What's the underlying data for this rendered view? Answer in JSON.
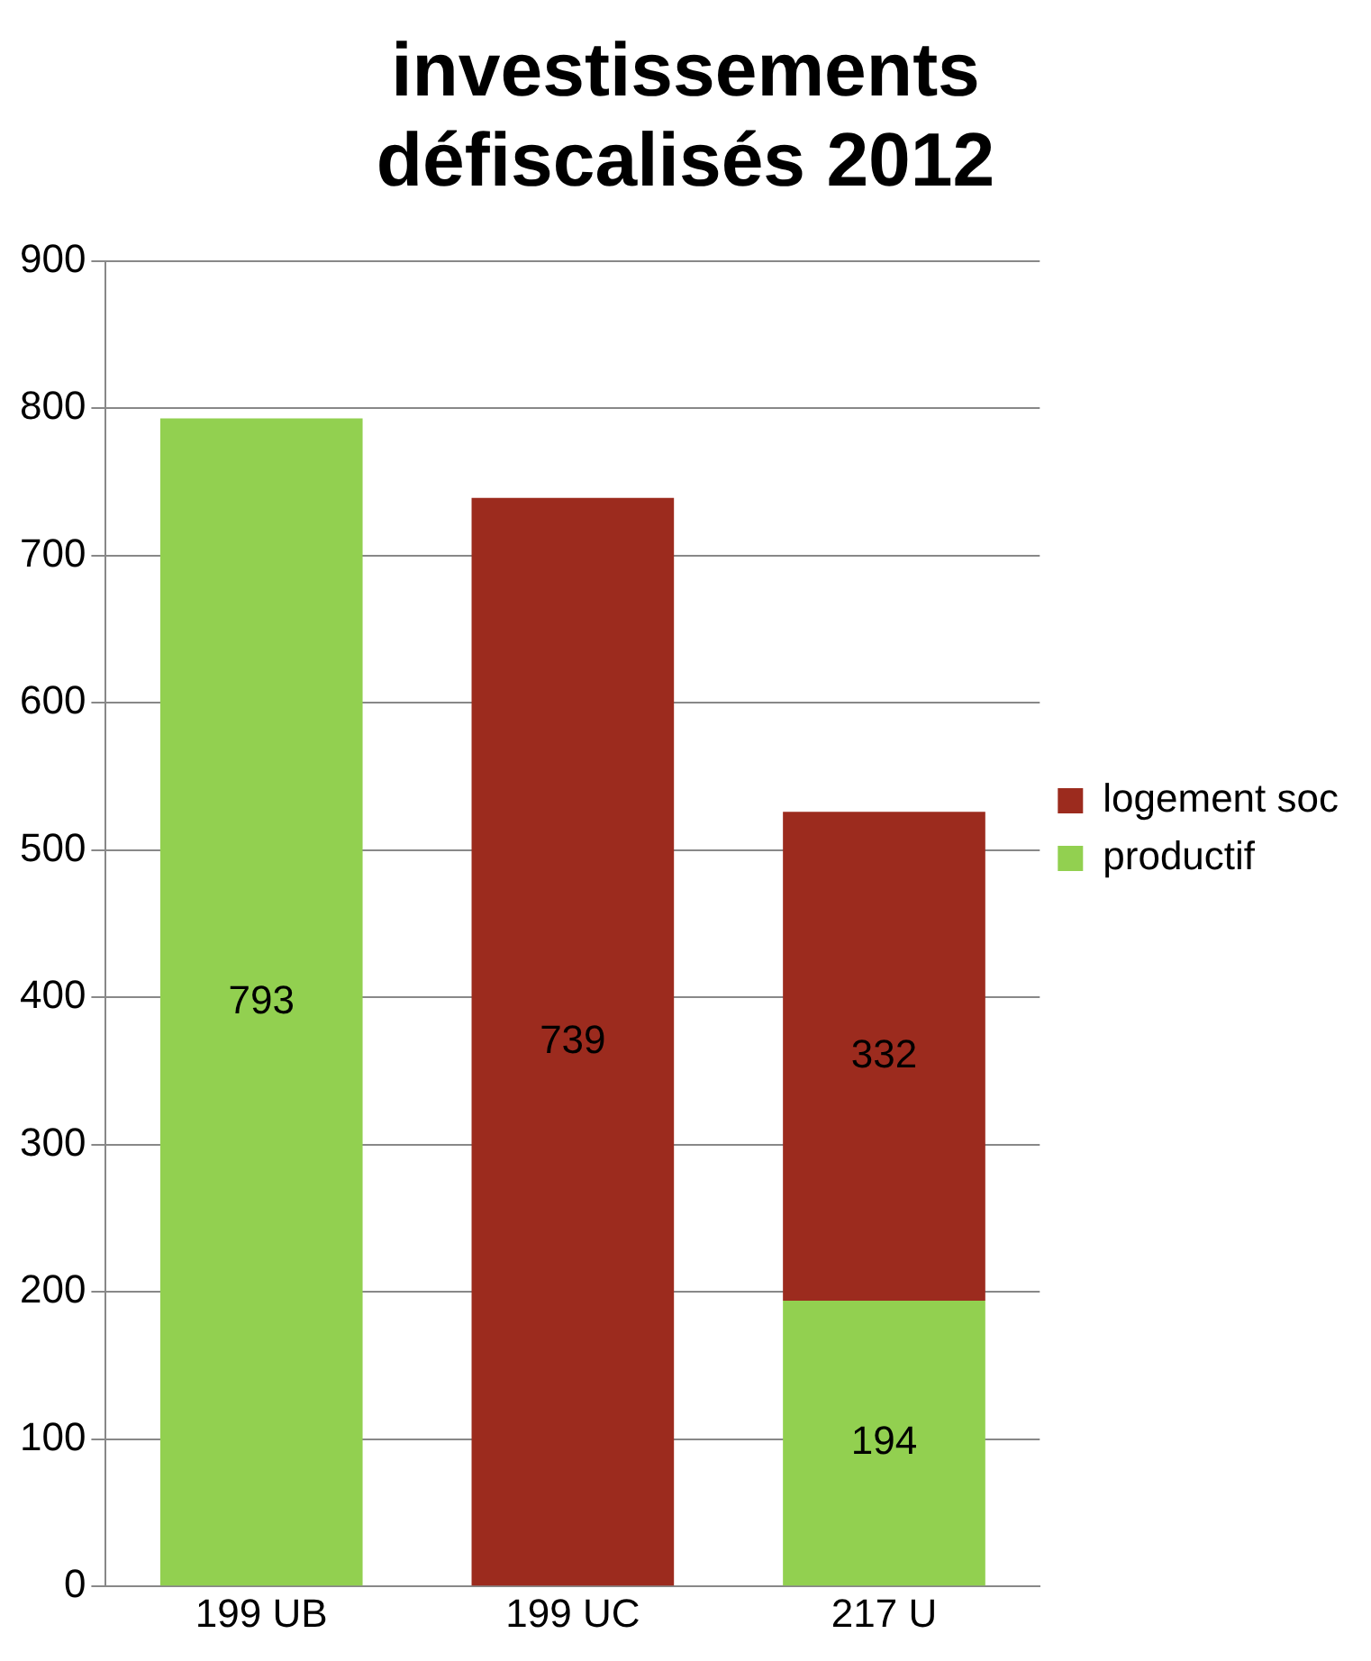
{
  "chart_data": {
    "type": "bar",
    "title": "investissements défiscalisés 2012",
    "categories": [
      "199 UB",
      "199 UC",
      "217 U"
    ],
    "series": [
      {
        "name": "productif",
        "color": "#92d050",
        "values": [
          793,
          null,
          194
        ]
      },
      {
        "name": "logement soc",
        "color": "#9c2b1e",
        "values": [
          null,
          739,
          332
        ]
      }
    ],
    "stacked": true,
    "ylim": [
      0,
      900
    ],
    "yticks": [
      0,
      100,
      200,
      300,
      400,
      500,
      600,
      700,
      800,
      900
    ],
    "grid": "y",
    "legend": "right",
    "data_labels": true
  }
}
